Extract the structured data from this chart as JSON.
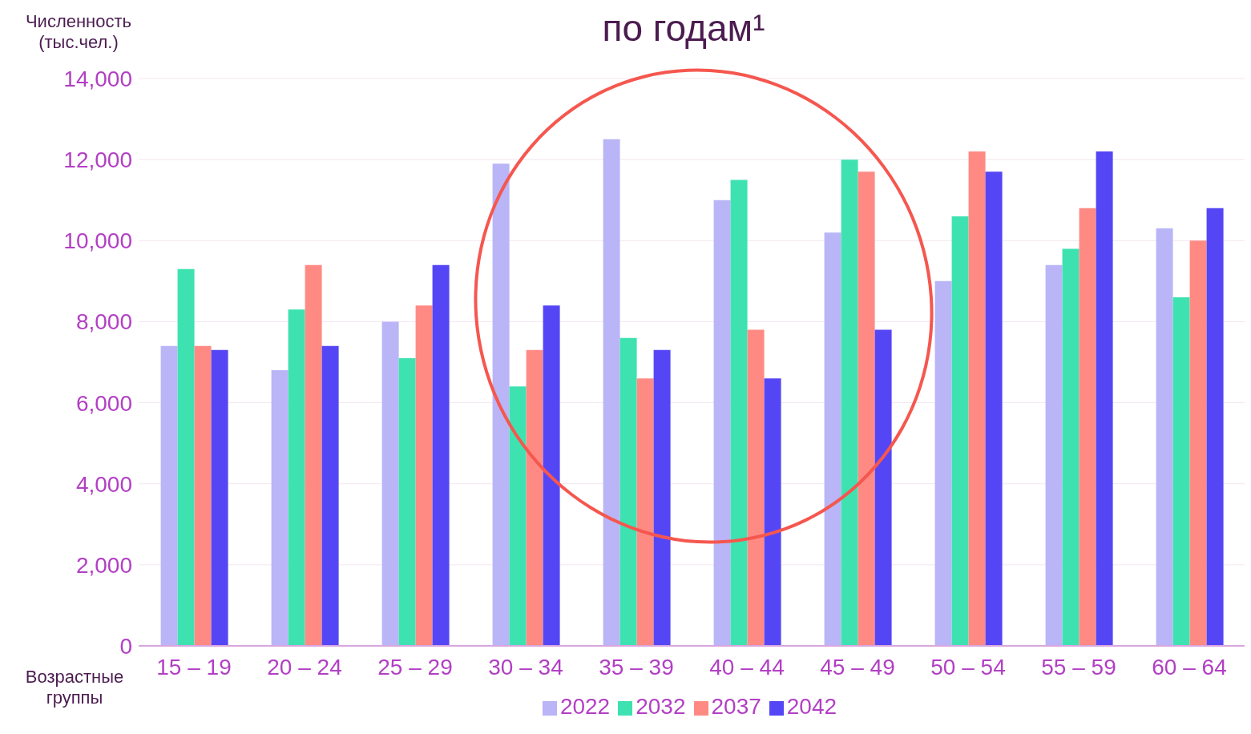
{
  "chart_data": {
    "type": "bar",
    "title": "по годам¹",
    "ylabel": "Численность (тыс.чел.)",
    "xlabel": "Возрастные группы",
    "categories": [
      "15 – 19",
      "20 – 24",
      "25 – 29",
      "30 – 34",
      "35 – 39",
      "40 – 44",
      "45 – 49",
      "50 – 54",
      "55 – 59",
      "60 – 64"
    ],
    "series": [
      {
        "name": "2022",
        "color": "#b9b5f7",
        "values": [
          7400,
          6800,
          8000,
          11900,
          12500,
          11000,
          10200,
          9000,
          9400,
          10300
        ]
      },
      {
        "name": "2032",
        "color": "#3ee2b0",
        "values": [
          9300,
          8300,
          7100,
          6400,
          7600,
          11500,
          12000,
          10600,
          9800,
          8600
        ]
      },
      {
        "name": "2037",
        "color": "#ff8a84",
        "values": [
          7400,
          9400,
          8400,
          7300,
          6600,
          7800,
          11700,
          12200,
          10800,
          10000
        ]
      },
      {
        "name": "2042",
        "color": "#5546f5",
        "values": [
          7300,
          7400,
          9400,
          8400,
          7300,
          6600,
          7800,
          11700,
          12200,
          10800
        ]
      }
    ],
    "ylim": [
      0,
      14000
    ],
    "yticks": [
      0,
      {
        "value": 2000,
        "label": "2,000"
      },
      {
        "value": 4000,
        "label": "4,000"
      },
      {
        "value": 6000,
        "label": "6,000"
      },
      {
        "value": 8000,
        "label": "8,000"
      },
      {
        "value": 10000,
        "label": "10,000"
      },
      {
        "value": 12000,
        "label": "12,000"
      },
      {
        "value": 14000,
        "label": "14,000"
      }
    ],
    "grid": "y",
    "legend": "bottom"
  }
}
